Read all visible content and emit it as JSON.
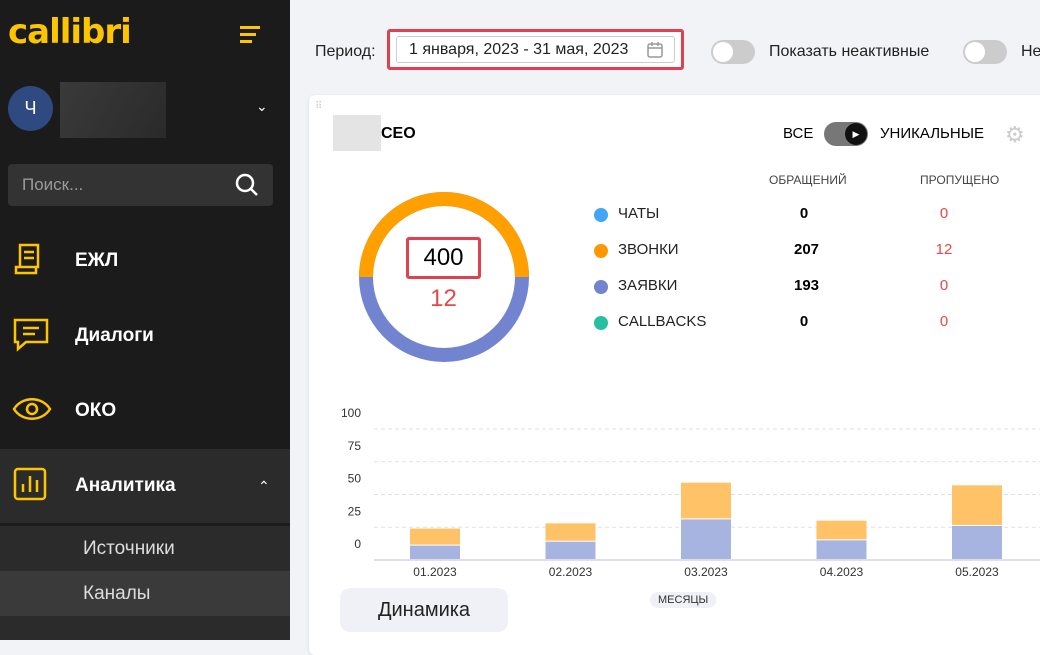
{
  "sidebar": {
    "logo": "callibri",
    "avatar_letter": "Ч",
    "search_placeholder": "Поиск...",
    "items": [
      {
        "label": "ЕЖЛ",
        "icon": "journal-icon"
      },
      {
        "label": "Диалоги",
        "icon": "chat-icon"
      },
      {
        "label": "ОКО",
        "icon": "eye-icon"
      },
      {
        "label": "Аналитика",
        "icon": "analytics-icon"
      }
    ],
    "subitems": [
      {
        "label": "Источники"
      },
      {
        "label": "Каналы"
      }
    ]
  },
  "toolbar": {
    "period_label": "Период:",
    "date_range": "1 января, 2023 - 31 мая, 2023",
    "toggle1_label": "Показать неактивные",
    "toggle2_label": "Не"
  },
  "card": {
    "title": "CEO",
    "mode_all": "ВСЕ",
    "mode_unique": "УНИКАЛЬНЫЕ",
    "col1": "ОБРАЩЕНИЙ",
    "col2": "ПРОПУЩЕНО",
    "total": "400",
    "missed": "12",
    "rows": [
      {
        "name": "ЧАТЫ",
        "v1": "0",
        "v2": "0",
        "color": "#42a5f5"
      },
      {
        "name": "ЗВОНКИ",
        "v1": "207",
        "v2": "12",
        "color": "#ff9800"
      },
      {
        "name": "ЗАЯВКИ",
        "v1": "193",
        "v2": "0",
        "color": "#7283d0"
      },
      {
        "name": "CALLBACKS",
        "v1": "0",
        "v2": "0",
        "color": "#26c0a0"
      }
    ],
    "dynamics_button": "Динамика"
  },
  "chart_data": {
    "type": "bar",
    "stacked": true,
    "categories": [
      "01.2023",
      "02.2023",
      "03.2023",
      "04.2023",
      "05.2023"
    ],
    "series": [
      {
        "values": [
          11,
          14,
          31,
          15,
          26
        ],
        "color": "#a8b4e0"
      },
      {
        "values": [
          13,
          14,
          28,
          15,
          31
        ],
        "color": "#ffc266"
      }
    ],
    "yticks": [
      "0",
      "25",
      "50",
      "75",
      "100"
    ],
    "ylim": [
      0,
      100
    ],
    "xlabel": "МЕСЯЦЫ",
    "grid": true
  }
}
